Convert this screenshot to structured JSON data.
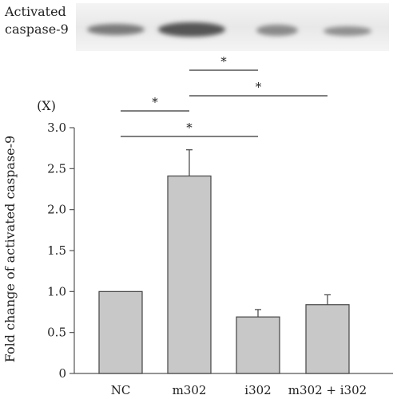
{
  "blot": {
    "label_line1": "Activated",
    "label_line2": "caspase-9"
  },
  "chart_data": {
    "type": "bar",
    "categories": [
      "NC",
      "m302",
      "i302",
      "m302 + i302"
    ],
    "values": [
      1.0,
      2.41,
      0.69,
      0.84
    ],
    "errors": [
      0.0,
      0.32,
      0.09,
      0.12
    ],
    "ylabel": "Fold change of activated caspase-9",
    "yunit": "(X)",
    "ylim": [
      0,
      3.0
    ],
    "yticks": [
      "0",
      "0.5",
      "1.0",
      "1.5",
      "2.0",
      "2.5",
      "3.0"
    ],
    "bar_color": "#c8c8c8",
    "significance": [
      {
        "from": 1,
        "to": 2,
        "label": "*"
      },
      {
        "from": 1,
        "to": 3,
        "label": "*"
      },
      {
        "from": 0,
        "to": 1,
        "label": "*"
      },
      {
        "from": 0,
        "to": 2,
        "label": "*"
      }
    ]
  }
}
